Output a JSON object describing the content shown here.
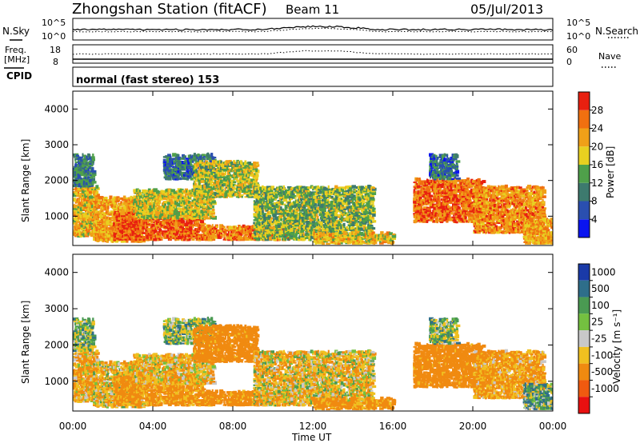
{
  "header": {
    "station": "Zhongshan Station (fitACF)",
    "beam": "Beam 11",
    "date": "05/Jul/2013"
  },
  "strips": {
    "nsky_label": "N.Sky",
    "nsky_ticks": [
      "10^5",
      "10^0"
    ],
    "nsearch_label": "N.Search",
    "nsearch_ticks": [
      "10^5",
      "10^0"
    ],
    "freq_label_1": "Freq.",
    "freq_label_2": "[MHz]",
    "freq_ticks": [
      "18",
      "8"
    ],
    "nave_label": "Nave",
    "nave_ticks": [
      "60",
      "0"
    ],
    "cpid_label": "CPID",
    "cpid_text": "normal (fast stereo) 153"
  },
  "axes": {
    "x_ticks": [
      "00:00",
      "04:00",
      "08:00",
      "12:00",
      "16:00",
      "20:00",
      "00:00"
    ],
    "x_label": "Time UT",
    "y_ticks": [
      "1000",
      "2000",
      "3000",
      "4000"
    ],
    "y_label": "Slant Range [km]"
  },
  "colorbars": {
    "power_label": "Power [dB]",
    "power_ticks": [
      "4",
      "8",
      "12",
      "16",
      "20",
      "24",
      "28"
    ],
    "power_colors": [
      "#0a14f0",
      "#2a4fb0",
      "#3d7a6e",
      "#4fa04a",
      "#e8d020",
      "#f0a018",
      "#f07010",
      "#e82010"
    ],
    "velocity_label": "Velocity [m s⁻¹]",
    "velocity_ticks": [
      "1000",
      "500",
      "100",
      "25",
      "-25",
      "-100",
      "-500",
      "-1000"
    ],
    "velocity_colors": [
      "#1a3aa8",
      "#2e6e8a",
      "#4a9a52",
      "#74c040",
      "#c8c8c8",
      "#f0c020",
      "#f08a10",
      "#f05a10",
      "#e81010"
    ]
  },
  "chart_data": {
    "type": "heatmap",
    "x_range_hours": [
      0,
      24
    ],
    "y_range_km": [
      180,
      4500
    ],
    "power_scale_db": [
      0,
      30
    ],
    "velocity_scale_ms": [
      -1000,
      1000
    ],
    "echo_regions": [
      {
        "t0": 0.0,
        "t1": 1.2,
        "r0": 400,
        "r1": 1800,
        "power": 20,
        "velocity": -100
      },
      {
        "t0": 0.0,
        "t1": 1.0,
        "r0": 1800,
        "r1": 2700,
        "power": 10,
        "velocity": 25
      },
      {
        "t0": 1.0,
        "t1": 3.5,
        "r0": 250,
        "r1": 1500,
        "power": 22,
        "velocity": -60
      },
      {
        "t0": 2.0,
        "t1": 6.5,
        "r0": 300,
        "r1": 1100,
        "power": 27,
        "velocity": -150
      },
      {
        "t0": 3.0,
        "t1": 7.0,
        "r0": 900,
        "r1": 1700,
        "power": 18,
        "velocity": -80
      },
      {
        "t0": 4.5,
        "t1": 7.0,
        "r0": 2000,
        "r1": 2700,
        "power": 9,
        "velocity": 30
      },
      {
        "t0": 6.0,
        "t1": 9.2,
        "r0": 1500,
        "r1": 2500,
        "power": 17,
        "velocity": -200
      },
      {
        "t0": 6.5,
        "t1": 11.0,
        "r0": 300,
        "r1": 700,
        "power": 25,
        "velocity": -180
      },
      {
        "t0": 9.0,
        "t1": 15.0,
        "r0": 300,
        "r1": 1800,
        "power": 15,
        "velocity": -60
      },
      {
        "t0": 12.0,
        "t1": 16.0,
        "r0": 200,
        "r1": 500,
        "power": 20,
        "velocity": -150
      },
      {
        "t0": 17.0,
        "t1": 20.5,
        "r0": 800,
        "r1": 2000,
        "power": 26,
        "velocity": -200
      },
      {
        "t0": 17.8,
        "t1": 19.2,
        "r0": 2000,
        "r1": 2700,
        "power": 9,
        "velocity": 30
      },
      {
        "t0": 20.0,
        "t1": 23.5,
        "r0": 500,
        "r1": 1800,
        "power": 24,
        "velocity": -120
      },
      {
        "t0": 22.5,
        "t1": 24.0,
        "r0": 200,
        "r1": 900,
        "power": 22,
        "velocity": 60
      }
    ]
  }
}
